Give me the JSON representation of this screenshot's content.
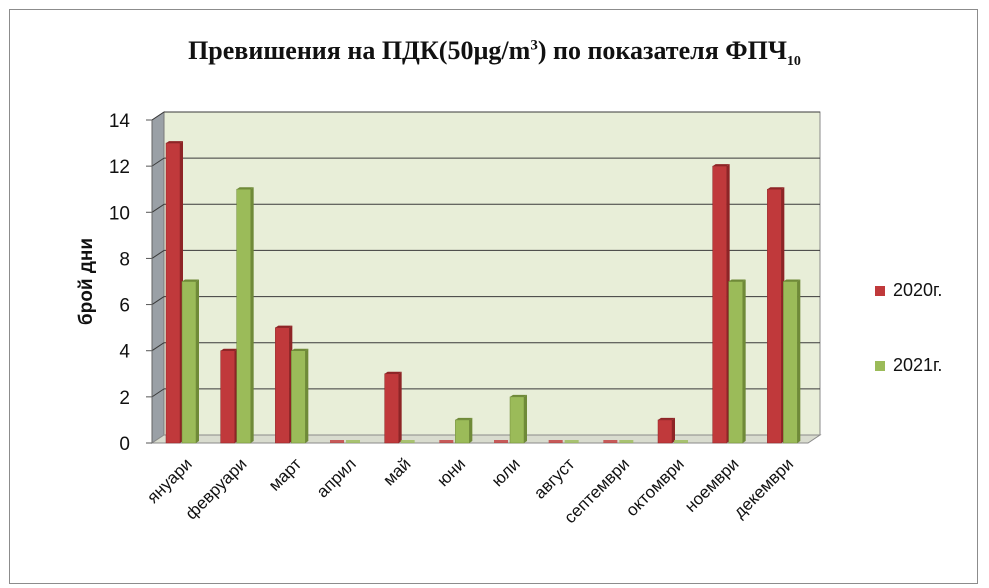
{
  "chart_data": {
    "type": "bar",
    "title": "Превишения на ПДК(50µg/m",
    "title_sup": "3",
    "title_mid": ") по показателя  ФПЧ",
    "title_sub": "10",
    "ylabel": "брой дни",
    "xlabel": "",
    "ylim": [
      0,
      14
    ],
    "yticks": [
      "0",
      "2",
      "4",
      "6",
      "8",
      "10",
      "12",
      "14"
    ],
    "grid": true,
    "legend_position": "right",
    "categories": [
      "януари",
      "февруари",
      "март",
      "април",
      "май",
      "юни",
      "юли",
      "август",
      "септември",
      "октомври",
      "ноември",
      "декември"
    ],
    "series": [
      {
        "name": "2020г.",
        "color": "#c0393b",
        "values": [
          13,
          4,
          5,
          0,
          3,
          0,
          0,
          0,
          0,
          1,
          12,
          11
        ]
      },
      {
        "name": "2021г.",
        "color": "#9bbb59",
        "values": [
          7,
          11,
          4,
          0,
          0,
          1,
          2,
          0,
          0,
          0,
          7,
          7
        ]
      }
    ]
  }
}
